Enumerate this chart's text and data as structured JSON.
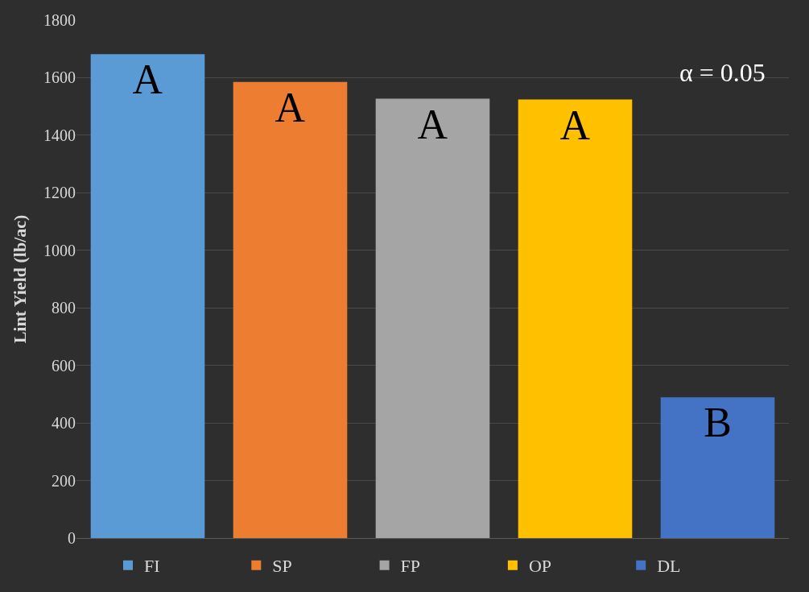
{
  "chart_data": {
    "type": "bar",
    "ylabel": "Lint Yield (lb/ac)",
    "categories": [
      null,
      null,
      null,
      null,
      null
    ],
    "series": [
      {
        "name": "FI",
        "color": "#5b9bd5",
        "values": [
          1682,
          null,
          null,
          null,
          null
        ],
        "value_labels": [
          "A",
          null,
          null,
          null,
          null
        ]
      },
      {
        "name": "SP",
        "color": "#ed7d31",
        "values": [
          null,
          1585,
          null,
          null,
          null
        ],
        "value_labels": [
          null,
          "A",
          null,
          null,
          null
        ]
      },
      {
        "name": "FP",
        "color": "#a5a5a5",
        "values": [
          null,
          null,
          1527,
          null,
          null
        ],
        "value_labels": [
          null,
          null,
          "A",
          null,
          null
        ]
      },
      {
        "name": "OP",
        "color": "#ffc000",
        "values": [
          null,
          null,
          null,
          1524,
          null
        ],
        "value_labels": [
          null,
          null,
          null,
          "A",
          null
        ]
      },
      {
        "name": "DL",
        "color": "#4472c4",
        "values": [
          null,
          null,
          null,
          null,
          489
        ],
        "value_labels": [
          null,
          null,
          null,
          null,
          "B"
        ]
      }
    ],
    "ylim": [
      0,
      1800
    ],
    "yticks": [
      0,
      200,
      400,
      600,
      800,
      1000,
      1200,
      1400,
      1600,
      1800
    ],
    "grid": "y",
    "legend": "bottom",
    "annotations": [
      "α = 0.05"
    ]
  }
}
